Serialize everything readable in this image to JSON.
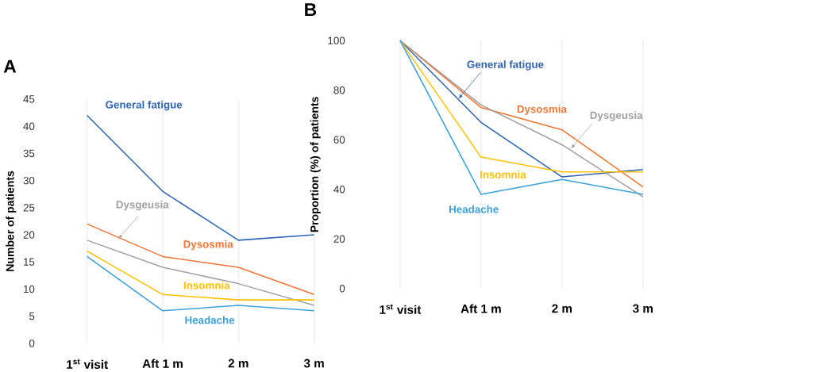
{
  "chart_data": [
    {
      "type": "line",
      "title": "A",
      "ylabel": "Number of patients",
      "categories": [
        "1$^{st}$ visit",
        "Aft 1 m",
        "2 m",
        "3 m"
      ],
      "ylim": [
        0,
        45
      ],
      "yticks": [
        0,
        5,
        10,
        15,
        20,
        25,
        30,
        35,
        40,
        45
      ],
      "grid": "x",
      "marker": "none",
      "series": [
        {
          "name": "General fatigue",
          "color": "#2e64b4",
          "values": [
            42,
            28,
            19,
            20
          ]
        },
        {
          "name": "Dysosmia",
          "color": "#f07533",
          "values": [
            22,
            16,
            14,
            9
          ]
        },
        {
          "name": "Dysgeusia",
          "color": "#a0a0a0",
          "values": [
            19,
            14,
            11,
            7
          ]
        },
        {
          "name": "Insomnia",
          "color": "#ffc000",
          "values": [
            17,
            9,
            8,
            8
          ]
        },
        {
          "name": "Headache",
          "color": "#3aa0dc",
          "values": [
            16,
            6,
            7,
            6
          ]
        }
      ]
    },
    {
      "type": "line",
      "title": "B",
      "ylabel": "Proportion (%) of patients",
      "categories": [
        "1$^{st}$ visit",
        "Aft 1 m",
        "2 m",
        "3 m"
      ],
      "ylim": [
        0,
        100
      ],
      "yticks": [
        0,
        20,
        40,
        60,
        80,
        100
      ],
      "grid": "x",
      "marker": "none",
      "series": [
        {
          "name": "General fatigue",
          "color": "#2e64b4",
          "values": [
            100,
            67,
            45,
            48
          ]
        },
        {
          "name": "Dysosmia",
          "color": "#f07533",
          "values": [
            100,
            73,
            64,
            41
          ]
        },
        {
          "name": "Dysgeusia",
          "color": "#a0a0a0",
          "values": [
            100,
            74,
            58,
            37
          ]
        },
        {
          "name": "Insomnia",
          "color": "#ffc000",
          "values": [
            100,
            53,
            47,
            47
          ]
        },
        {
          "name": "Headache",
          "color": "#3aa0dc",
          "values": [
            100,
            38,
            44,
            38
          ]
        }
      ]
    }
  ]
}
